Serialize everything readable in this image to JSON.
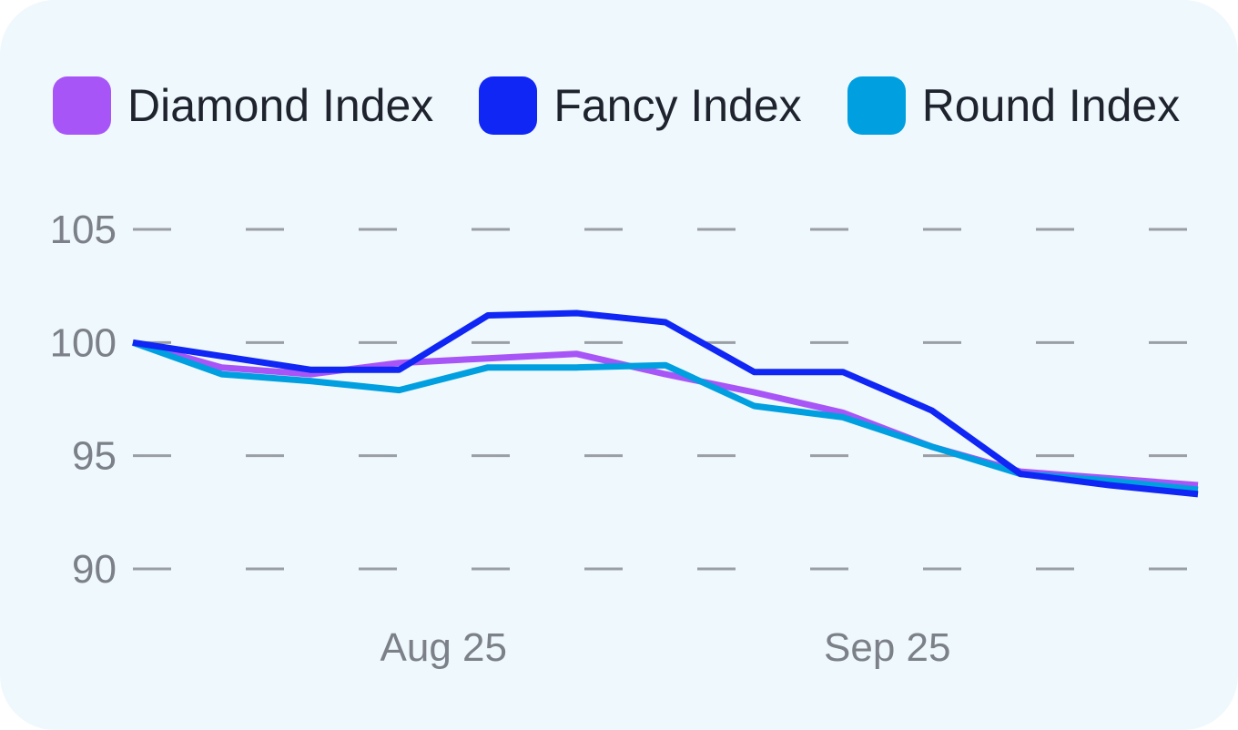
{
  "chart_data": {
    "type": "line",
    "title": "",
    "xlabel": "",
    "ylabel": "",
    "x": [
      0,
      1,
      2,
      3,
      4,
      5,
      6,
      7,
      8,
      9,
      10,
      11,
      12
    ],
    "x_tick_labels": [
      {
        "x": 3.5,
        "label": "Aug 25"
      },
      {
        "x": 8.5,
        "label": "Sep 25"
      }
    ],
    "y_ticks": [
      90,
      95,
      100,
      105
    ],
    "ylim": [
      90,
      105
    ],
    "grid": true,
    "grid_style": "dashed",
    "legend_position": "top",
    "series": [
      {
        "name": "Diamond Index",
        "color": "#a855f7",
        "values": [
          100.0,
          98.9,
          98.6,
          99.1,
          99.3,
          99.5,
          98.6,
          97.8,
          96.9,
          95.4,
          94.3,
          94.0,
          93.7
        ]
      },
      {
        "name": "Fancy Index",
        "color": "#0f26f5",
        "values": [
          100.0,
          99.4,
          98.8,
          98.8,
          101.2,
          101.3,
          100.9,
          98.7,
          98.7,
          97.0,
          94.2,
          93.7,
          93.3
        ]
      },
      {
        "name": "Round Index",
        "color": "#009fe0",
        "values": [
          100.0,
          98.6,
          98.3,
          97.9,
          98.9,
          98.9,
          99.0,
          97.2,
          96.7,
          95.4,
          94.2,
          93.9,
          93.5
        ]
      }
    ]
  }
}
